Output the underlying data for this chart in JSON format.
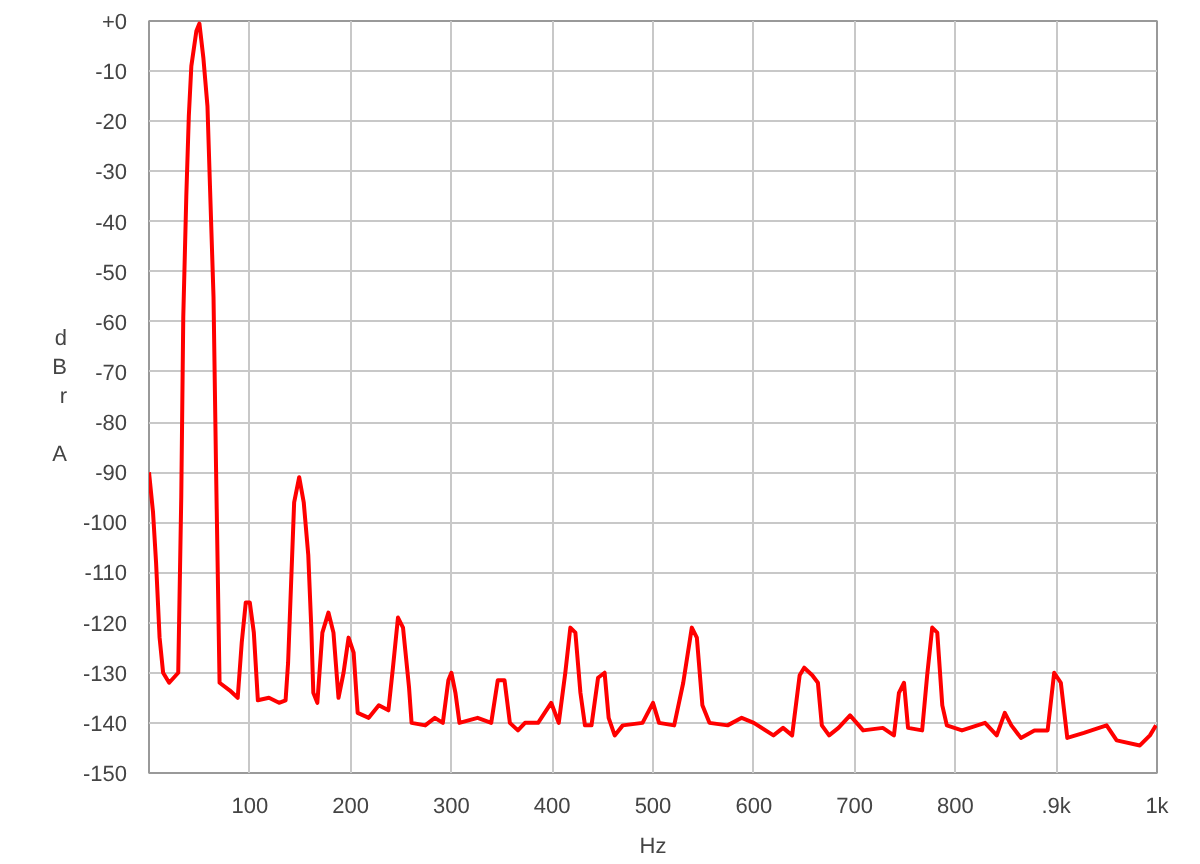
{
  "chart_data": {
    "type": "line",
    "xlabel": "Hz",
    "ylabel": "dBr A",
    "xlim": [
      0,
      1000
    ],
    "ylim": [
      -150,
      0
    ],
    "xticks": [
      100,
      200,
      300,
      400,
      500,
      600,
      700,
      800,
      {
        "value": 900,
        "label": ".9k"
      },
      {
        "value": 1000,
        "label": "1k"
      }
    ],
    "yticks": [
      {
        "value": 0,
        "label": "+0"
      },
      -10,
      -20,
      -30,
      -40,
      -50,
      -60,
      -70,
      -80,
      -90,
      -100,
      -110,
      -120,
      -130,
      -140,
      -150
    ],
    "grid": true,
    "series": [
      {
        "color": "#ff0000",
        "x": [
          0,
          4,
          7,
          10.5,
          14,
          20,
          29,
          32,
          34,
          37,
          39.5,
          42,
          47,
          50,
          54,
          58,
          60.5,
          64,
          66.5,
          70,
          80,
          88,
          92,
          96,
          100,
          104,
          108,
          119,
          129,
          135.5,
          138,
          141,
          144,
          149,
          153.5,
          158,
          161,
          163,
          167,
          172,
          178,
          183,
          188,
          193,
          198,
          203,
          207,
          218,
          228,
          237.5,
          242,
          247,
          252,
          258,
          260.5,
          274,
          283.6,
          291.5,
          297,
          300,
          304,
          308,
          326,
          339.5,
          346,
          352.7,
          358,
          366,
          373,
          386,
          399,
          406.5,
          413,
          418,
          423,
          428,
          432.5,
          439,
          445.5,
          452,
          456,
          462,
          470,
          489.6,
          500,
          506,
          521,
          530,
          538.5,
          543.5,
          549,
          556,
          574,
          588,
          600,
          619.5,
          629,
          638,
          645.5,
          650,
          658,
          663.6,
          667.5,
          674.7,
          684,
          695.5,
          708.5,
          728,
          739,
          744,
          749,
          753,
          767,
          772,
          777,
          782,
          787,
          791.5,
          806.5,
          829.4,
          841,
          849,
          855.5,
          865,
          878.4,
          891.5,
          898,
          904.6,
          911,
          927.5,
          950,
          960,
          983,
          993,
          999
        ],
        "values": [
          -90,
          -98,
          -108,
          -123,
          -130,
          -132,
          -130,
          -95,
          -59,
          -35,
          -19,
          -9,
          -2,
          -0.5,
          -7.5,
          -17,
          -33,
          -55,
          -89,
          -132,
          -133.5,
          -135,
          -124,
          -116,
          -116,
          -122,
          -135.5,
          -135,
          -136,
          -135.5,
          -128,
          -112,
          -96,
          -91,
          -96,
          -106.5,
          -121,
          -134,
          -136,
          -122,
          -118,
          -122,
          -135,
          -130,
          -123,
          -126,
          -138,
          -139,
          -136.5,
          -137.5,
          -129,
          -119,
          -121,
          -133,
          -140,
          -140.5,
          -139,
          -140,
          -131.5,
          -130,
          -134,
          -140,
          -139,
          -140,
          -131.5,
          -131.5,
          -140,
          -141.5,
          -140,
          -140,
          -136,
          -140,
          -130,
          -121,
          -122,
          -134,
          -140.5,
          -140.5,
          -131,
          -130,
          -139,
          -142.5,
          -140.5,
          -140,
          -136,
          -140,
          -140.5,
          -132,
          -121,
          -123,
          -136.5,
          -140,
          -140.5,
          -139,
          -140,
          -142.5,
          -141,
          -142.5,
          -130.5,
          -129,
          -130.5,
          -132,
          -140.5,
          -142.5,
          -141,
          -138.5,
          -141.5,
          -141,
          -142.5,
          -134,
          -132,
          -141,
          -141.5,
          -130.5,
          -121,
          -122,
          -136.5,
          -140.5,
          -141.5,
          -140,
          -142.5,
          -138,
          -140.5,
          -143,
          -141.5,
          -141.5,
          -130,
          -132,
          -143,
          -142,
          -140.5,
          -143.5,
          -144.5,
          -142.5,
          -140.5
        ]
      }
    ]
  }
}
